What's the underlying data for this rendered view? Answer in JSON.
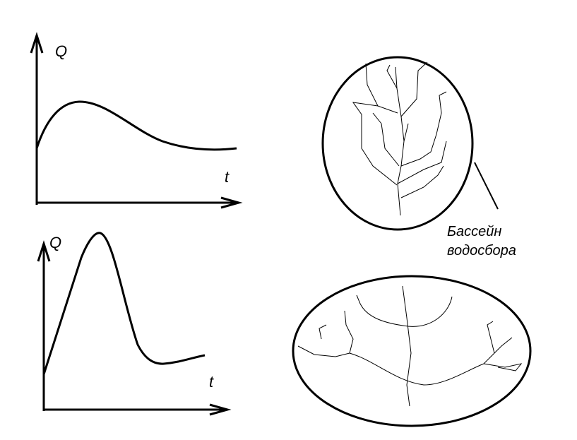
{
  "graphs": [
    {
      "y_label": "Q",
      "x_label": "t"
    },
    {
      "y_label": "Q",
      "x_label": "t"
    }
  ],
  "basin_label": {
    "line1": "Бассейн",
    "line2": "водосбора"
  }
}
